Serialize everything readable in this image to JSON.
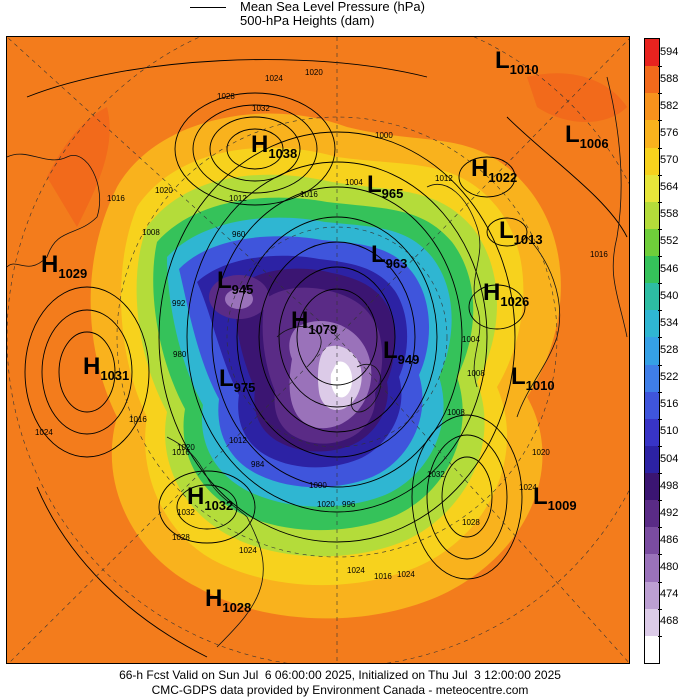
{
  "legend": {
    "line1": "Mean Sea Level Pressure (hPa)",
    "line2": "500-hPa Heights (dam)"
  },
  "colorbar": {
    "ticks": [
      "594",
      "588",
      "582",
      "576",
      "570",
      "564",
      "558",
      "552",
      "546",
      "540",
      "534",
      "528",
      "522",
      "516",
      "510",
      "504",
      "498",
      "492",
      "486",
      "480",
      "474",
      "468"
    ],
    "colors": [
      "#e8231f",
      "#f26a1b",
      "#f7921c",
      "#f9b21d",
      "#f7d21d",
      "#e7e63a",
      "#b4dc3a",
      "#6fce3a",
      "#35c25a",
      "#2dbda2",
      "#2fb6d2",
      "#35a0e6",
      "#3f7ee8",
      "#3f55dc",
      "#3834c6",
      "#2c22a4",
      "#3b1572",
      "#5a2b86",
      "#7a4ca0",
      "#9a72ba",
      "#bc9fd2",
      "#dccbe8",
      "#ffffff"
    ]
  },
  "systems": [
    {
      "type": "L",
      "value": "1010"
    },
    {
      "type": "L",
      "value": "1006"
    },
    {
      "type": "H",
      "value": "1038"
    },
    {
      "type": "H",
      "value": "1022"
    },
    {
      "type": "L",
      "value": "965"
    },
    {
      "type": "L",
      "value": "1013"
    },
    {
      "type": "L",
      "value": "963"
    },
    {
      "type": "H",
      "value": "1029"
    },
    {
      "type": "L",
      "value": "945"
    },
    {
      "type": "H",
      "value": "1026"
    },
    {
      "type": "H",
      "value": "1079"
    },
    {
      "type": "L",
      "value": "949"
    },
    {
      "type": "H",
      "value": "1031"
    },
    {
      "type": "L",
      "value": "975"
    },
    {
      "type": "L",
      "value": "1010"
    },
    {
      "type": "H",
      "value": "1032"
    },
    {
      "type": "L",
      "value": "1009"
    },
    {
      "type": "H",
      "value": "1028"
    }
  ],
  "isobar_labels": [
    "1024",
    "1020",
    "1028",
    "1032",
    "1016",
    "1020",
    "1012",
    "1008",
    "1004",
    "1000",
    "1012",
    "1016",
    "1024",
    "1016",
    "1012",
    "1016",
    "1020",
    "1024",
    "1028",
    "1032",
    "1020",
    "1016",
    "1024",
    "1028",
    "1032",
    "1024",
    "1016",
    "1020",
    "1024",
    "984",
    "960",
    "992",
    "1004",
    "1008",
    "980",
    "1008",
    "1000",
    "996"
  ],
  "footer": {
    "line1": "66-h Fcst Valid on Sun Jul  6 06:00:00 2025, Initialized on Thu Jul  3 12:00:00 2025",
    "line2": "CMC-GDPS data provided by Environment Canada - meteocentre.com"
  }
}
